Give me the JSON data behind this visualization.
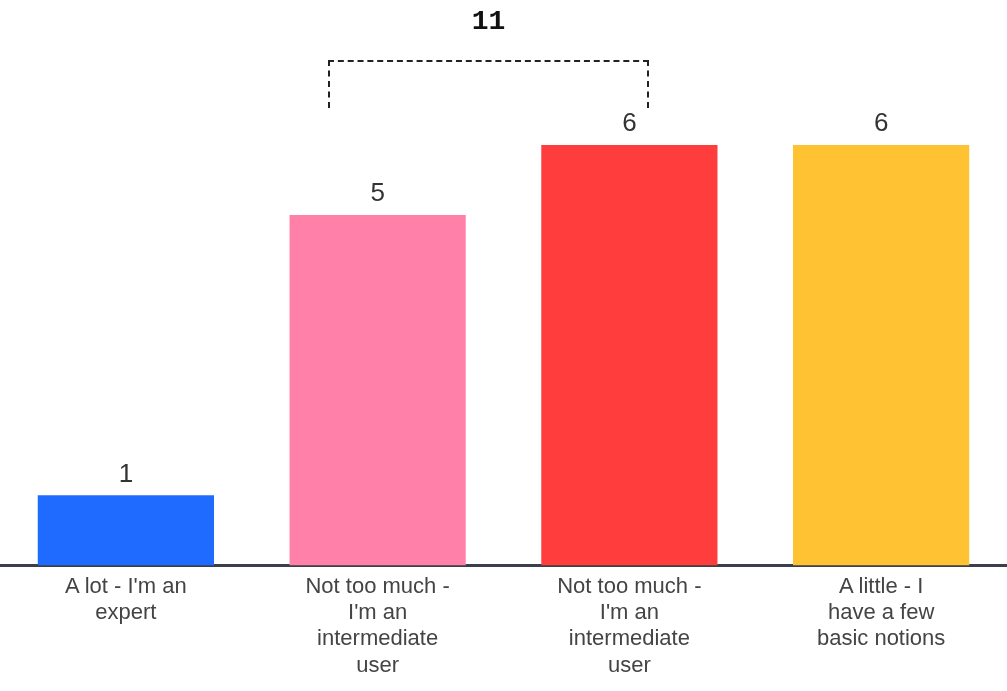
{
  "chart_data": {
    "type": "bar",
    "categories": [
      "A lot - I'm an expert",
      "Not too much - I'm an intermediate user",
      "Not too much - I'm an intermediate user",
      "A little - I have a few basic notions"
    ],
    "values": [
      1,
      5,
      6,
      6
    ],
    "colors": [
      "#1f6bff",
      "#ff80a8",
      "#ff3d3d",
      "#ffc233"
    ],
    "data_labels": true,
    "grid": false,
    "legend": false,
    "annotations": [
      "11"
    ]
  }
}
